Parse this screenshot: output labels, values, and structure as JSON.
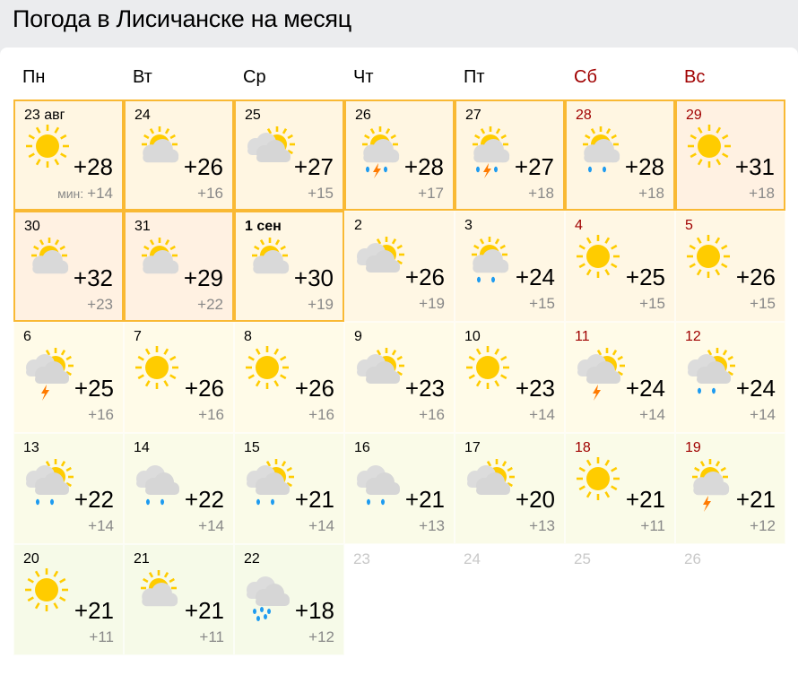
{
  "title": "Погода в Лисичанске на месяц",
  "weekdays": [
    "Пн",
    "Вт",
    "Ср",
    "Чт",
    "Пт",
    "Сб",
    "Вс"
  ],
  "min_label": "мин:",
  "colors": {
    "weekend": "#a00000",
    "past_border": "#f9b934",
    "sun": "#ffcc00",
    "cloud": "#d9d9d9",
    "rain": "#1e9bf0",
    "thunder": "#ff7a00"
  },
  "days": [
    {
      "date": "23 авг",
      "max": "+28",
      "min": "+14",
      "icon": "sun",
      "past": true
    },
    {
      "date": "24",
      "max": "+26",
      "min": "+16",
      "icon": "partly-cloudy",
      "past": true
    },
    {
      "date": "25",
      "max": "+27",
      "min": "+15",
      "icon": "cloudy-sun",
      "past": true
    },
    {
      "date": "26",
      "max": "+28",
      "min": "+17",
      "icon": "partly-cloudy-rain-thunder",
      "past": true
    },
    {
      "date": "27",
      "max": "+27",
      "min": "+18",
      "icon": "partly-cloudy-rain-thunder",
      "past": true
    },
    {
      "date": "28",
      "max": "+28",
      "min": "+18",
      "icon": "partly-cloudy-rain",
      "past": true
    },
    {
      "date": "29",
      "max": "+31",
      "min": "+18",
      "icon": "sun",
      "past": true
    },
    {
      "date": "30",
      "max": "+32",
      "min": "+23",
      "icon": "partly-cloudy",
      "past": true
    },
    {
      "date": "31",
      "max": "+29",
      "min": "+22",
      "icon": "partly-cloudy",
      "past": true
    },
    {
      "date": "1 сен",
      "max": "+30",
      "min": "+19",
      "icon": "partly-cloudy",
      "past": true,
      "bold": true
    },
    {
      "date": "2",
      "max": "+26",
      "min": "+19",
      "icon": "cloudy-sun"
    },
    {
      "date": "3",
      "max": "+24",
      "min": "+15",
      "icon": "partly-cloudy-rain"
    },
    {
      "date": "4",
      "max": "+25",
      "min": "+15",
      "icon": "sun"
    },
    {
      "date": "5",
      "max": "+26",
      "min": "+15",
      "icon": "sun"
    },
    {
      "date": "6",
      "max": "+25",
      "min": "+16",
      "icon": "cloudy-sun-thunder"
    },
    {
      "date": "7",
      "max": "+26",
      "min": "+16",
      "icon": "sun"
    },
    {
      "date": "8",
      "max": "+26",
      "min": "+16",
      "icon": "sun"
    },
    {
      "date": "9",
      "max": "+23",
      "min": "+16",
      "icon": "cloudy-sun"
    },
    {
      "date": "10",
      "max": "+23",
      "min": "+14",
      "icon": "sun"
    },
    {
      "date": "11",
      "max": "+24",
      "min": "+14",
      "icon": "cloudy-sun-thunder"
    },
    {
      "date": "12",
      "max": "+24",
      "min": "+14",
      "icon": "cloudy-sun-rain"
    },
    {
      "date": "13",
      "max": "+22",
      "min": "+14",
      "icon": "cloudy-sun-rain"
    },
    {
      "date": "14",
      "max": "+22",
      "min": "+14",
      "icon": "cloudy-rain"
    },
    {
      "date": "15",
      "max": "+21",
      "min": "+14",
      "icon": "cloudy-sun-rain"
    },
    {
      "date": "16",
      "max": "+21",
      "min": "+13",
      "icon": "cloudy-rain"
    },
    {
      "date": "17",
      "max": "+20",
      "min": "+13",
      "icon": "cloudy-sun"
    },
    {
      "date": "18",
      "max": "+21",
      "min": "+11",
      "icon": "sun"
    },
    {
      "date": "19",
      "max": "+21",
      "min": "+12",
      "icon": "partly-cloudy-thunder"
    },
    {
      "date": "20",
      "max": "+21",
      "min": "+11",
      "icon": "sun"
    },
    {
      "date": "21",
      "max": "+21",
      "min": "+11",
      "icon": "partly-cloudy"
    },
    {
      "date": "22",
      "max": "+18",
      "min": "+12",
      "icon": "cloudy-heavy-rain"
    },
    {
      "date": "23",
      "outside": true
    },
    {
      "date": "24",
      "outside": true
    },
    {
      "date": "25",
      "outside": true
    },
    {
      "date": "26",
      "outside": true
    }
  ]
}
